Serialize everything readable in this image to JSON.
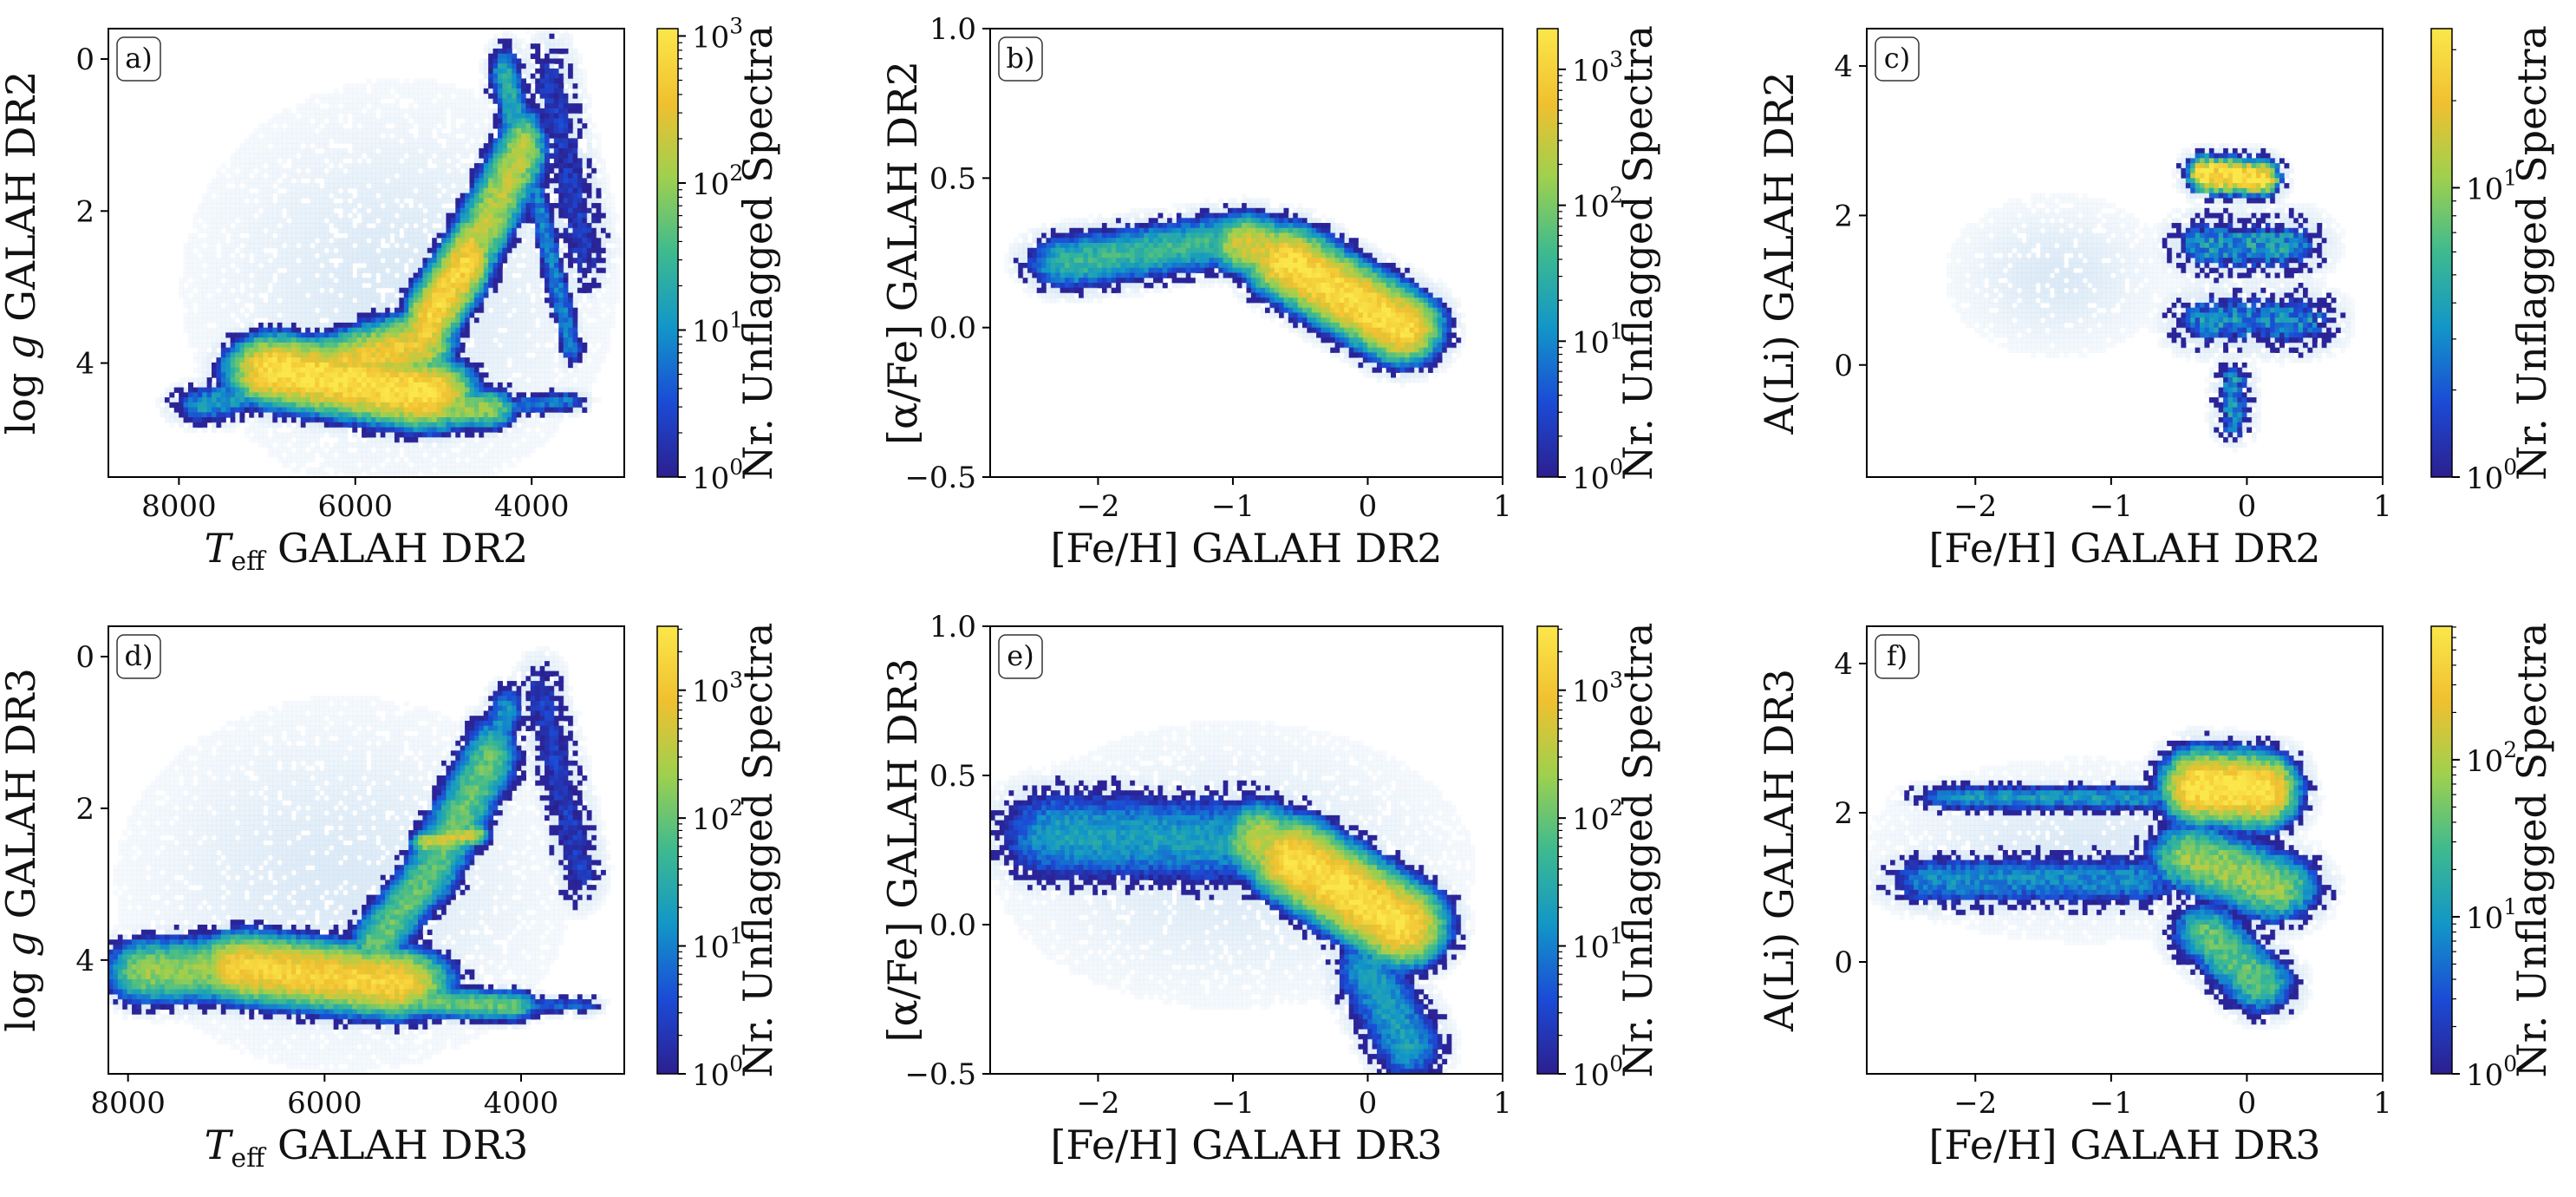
{
  "colormap": [
    "#2c1f8f",
    "#1b4bd6",
    "#1296c8",
    "#3dba8f",
    "#9ed04e",
    "#f0c030",
    "#fbe74a"
  ],
  "lowdensity_color": "#cfe2f3",
  "chart_data": [
    {
      "type": "heatmap",
      "panel": "a)",
      "xlabel": "T_eff GALAH DR2",
      "xlabel_main": "T",
      "xlabel_sub": "eff",
      "xlabel_rest": " GALAH DR2",
      "ylabel": "log g GALAH DR2",
      "ylabel_pre": "log ",
      "ylabel_var": "g",
      "ylabel_rest": " GALAH DR2",
      "xlim": [
        8800,
        2950
      ],
      "ylim": [
        5.5,
        -0.4
      ],
      "xticks": [
        8000,
        6000,
        4000
      ],
      "xticklabels": [
        "8000",
        "6000",
        "4000"
      ],
      "yticks": [
        0,
        2,
        4
      ],
      "yticklabels": [
        "0",
        "2",
        "4"
      ],
      "colorbar": {
        "label": "Nr. Unflagged Spectra",
        "scale": "log",
        "max_exp": 3.05,
        "ticks": [
          {
            "base": "10",
            "exp": "0",
            "e": 0
          },
          {
            "base": "10",
            "exp": "1",
            "e": 1
          },
          {
            "base": "10",
            "exp": "2",
            "e": 2
          },
          {
            "base": "10",
            "exp": "3",
            "e": 3
          }
        ]
      },
      "density": [
        {
          "kind": "seg",
          "x0": 6900,
          "y0": 4.1,
          "x1": 5200,
          "y1": 4.4,
          "sx": 380,
          "sy": 0.32,
          "dens": 3.0
        },
        {
          "kind": "seg",
          "x0": 6200,
          "y0": 4.05,
          "x1": 5300,
          "y1": 3.75,
          "sx": 300,
          "sy": 0.3,
          "dens": 2.6
        },
        {
          "kind": "seg",
          "x0": 5200,
          "y0": 3.5,
          "x1": 4700,
          "y1": 2.6,
          "sx": 170,
          "sy": 0.38,
          "dens": 2.8
        },
        {
          "kind": "seg",
          "x0": 4700,
          "y0": 2.6,
          "x1": 4100,
          "y1": 1.2,
          "sx": 200,
          "sy": 0.4,
          "dens": 2.2
        },
        {
          "kind": "seg",
          "x0": 4100,
          "y0": 1.2,
          "x1": 4300,
          "y1": 0.2,
          "sx": 150,
          "sy": 0.3,
          "dens": 1.3
        },
        {
          "kind": "seg",
          "x0": 5400,
          "y0": 4.6,
          "x1": 4500,
          "y1": 4.6,
          "sx": 250,
          "sy": 0.2,
          "dens": 2.0
        },
        {
          "kind": "seg",
          "x0": 7700,
          "y0": 4.55,
          "x1": 6900,
          "y1": 4.3,
          "sx": 300,
          "sy": 0.2,
          "dens": 1.1
        },
        {
          "kind": "seg",
          "x0": 4500,
          "y0": 4.6,
          "x1": 3600,
          "y1": 4.5,
          "sx": 200,
          "sy": 0.12,
          "dens": 0.8
        },
        {
          "kind": "seg",
          "x0": 4000,
          "y0": 1.5,
          "x1": 3550,
          "y1": 3.8,
          "sx": 110,
          "sy": 0.2,
          "dens": 0.9
        },
        {
          "kind": "seg",
          "x0": 3800,
          "y0": 0.3,
          "x1": 3400,
          "y1": 2.5,
          "sx": 250,
          "sy": 0.5,
          "dens": 0.3
        }
      ],
      "halo": [
        {
          "x": 5500,
          "y": 3.0,
          "sx": 1800,
          "sy": 2.0
        }
      ]
    },
    {
      "type": "heatmap",
      "panel": "b)",
      "xlabel": "[Fe/H] GALAH DR2",
      "ylabel": "[α/Fe] GALAH DR2",
      "xlim": [
        -2.8,
        1.0
      ],
      "ylim": [
        -0.5,
        1.0
      ],
      "xticks": [
        -2,
        -1,
        0,
        1
      ],
      "xticklabels": [
        "−2",
        "−1",
        "0",
        "1"
      ],
      "yticks": [
        -0.5,
        0.0,
        0.5,
        1.0
      ],
      "yticklabels": [
        "−0.5",
        "0.0",
        "0.5",
        "1.0"
      ],
      "colorbar": {
        "label": "Nr. Unflagged Spectra",
        "scale": "log",
        "max_exp": 3.3,
        "ticks": [
          {
            "base": "10",
            "exp": "0",
            "e": 0
          },
          {
            "base": "10",
            "exp": "1",
            "e": 1
          },
          {
            "base": "10",
            "exp": "2",
            "e": 2
          },
          {
            "base": "10",
            "exp": "3",
            "e": 3
          }
        ]
      },
      "density": [
        {
          "kind": "seg",
          "x0": -2.2,
          "y0": 0.22,
          "x1": -0.9,
          "y1": 0.3,
          "sx": 0.25,
          "sy": 0.07,
          "dens": 1.6
        },
        {
          "kind": "seg",
          "x0": -0.9,
          "y0": 0.28,
          "x1": -0.45,
          "y1": 0.22,
          "sx": 0.2,
          "sy": 0.07,
          "dens": 2.6
        },
        {
          "kind": "seg",
          "x0": -0.6,
          "y0": 0.22,
          "x1": 0.25,
          "y1": 0.0,
          "sx": 0.2,
          "sy": 0.08,
          "dens": 3.2
        }
      ],
      "halo": []
    },
    {
      "type": "heatmap",
      "panel": "c)",
      "xlabel": "[Fe/H] GALAH DR2",
      "ylabel": "A(Li) GALAH DR2",
      "xlim": [
        -2.8,
        1.0
      ],
      "ylim": [
        -1.5,
        4.5
      ],
      "xticks": [
        -2,
        -1,
        0,
        1
      ],
      "xticklabels": [
        "−2",
        "−1",
        "0",
        "1"
      ],
      "yticks": [
        0,
        2,
        4
      ],
      "yticklabels": [
        "0",
        "2",
        "4"
      ],
      "colorbar": {
        "label": "Nr. Unflagged Spectra",
        "scale": "log",
        "max_exp": 1.55,
        "ticks": [
          {
            "base": "10",
            "exp": "0",
            "e": 0
          },
          {
            "base": "10",
            "exp": "1",
            "e": 1
          }
        ]
      },
      "density": [
        {
          "kind": "seg",
          "x0": -0.3,
          "y0": 2.55,
          "x1": 0.1,
          "y1": 2.5,
          "sx": 0.13,
          "sy": 0.22,
          "dens": 1.55
        },
        {
          "kind": "seg",
          "x0": -0.3,
          "y0": 1.6,
          "x1": 0.3,
          "y1": 1.6,
          "sx": 0.25,
          "sy": 0.35,
          "dens": 0.55
        },
        {
          "kind": "seg",
          "x0": -0.3,
          "y0": 0.6,
          "x1": 0.4,
          "y1": 0.6,
          "sx": 0.25,
          "sy": 0.35,
          "dens": 0.5
        },
        {
          "kind": "seg",
          "x0": -0.1,
          "y0": -0.2,
          "x1": -0.1,
          "y1": -0.8,
          "sx": 0.12,
          "sy": 0.2,
          "dens": 0.5
        }
      ],
      "halo": [
        {
          "x": -1.4,
          "y": 1.2,
          "sx": 0.6,
          "sy": 0.8
        }
      ]
    },
    {
      "type": "heatmap",
      "panel": "d)",
      "xlabel": "T_eff GALAH DR3",
      "xlabel_main": "T",
      "xlabel_sub": "eff",
      "xlabel_rest": " GALAH DR3",
      "ylabel": "log g GALAH DR3",
      "ylabel_pre": "log ",
      "ylabel_var": "g",
      "ylabel_rest": " GALAH DR3",
      "xlim": [
        8200,
        2950
      ],
      "ylim": [
        5.5,
        -0.4
      ],
      "xticks": [
        8000,
        6000,
        4000
      ],
      "xticklabels": [
        "8000",
        "6000",
        "4000"
      ],
      "yticks": [
        0,
        2,
        4
      ],
      "yticklabels": [
        "0",
        "2",
        "4"
      ],
      "colorbar": {
        "label": "Nr. Unflagged Spectra",
        "scale": "log",
        "max_exp": 3.5,
        "ticks": [
          {
            "base": "10",
            "exp": "0",
            "e": 0
          },
          {
            "base": "10",
            "exp": "1",
            "e": 1
          },
          {
            "base": "10",
            "exp": "2",
            "e": 2
          },
          {
            "base": "10",
            "exp": "3",
            "e": 3
          }
        ]
      },
      "density": [
        {
          "kind": "seg",
          "x0": 7800,
          "y0": 4.15,
          "x1": 6800,
          "y1": 4.1,
          "sx": 300,
          "sy": 0.3,
          "dens": 2.3
        },
        {
          "kind": "seg",
          "x0": 6800,
          "y0": 4.1,
          "x1": 5300,
          "y1": 4.3,
          "sx": 380,
          "sy": 0.3,
          "dens": 3.2
        },
        {
          "kind": "seg",
          "x0": 5200,
          "y0": 4.55,
          "x1": 4100,
          "y1": 4.6,
          "sx": 200,
          "sy": 0.15,
          "dens": 2.0
        },
        {
          "kind": "seg",
          "x0": 5500,
          "y0": 3.8,
          "x1": 4900,
          "y1": 2.8,
          "sx": 180,
          "sy": 0.3,
          "dens": 2.0
        },
        {
          "kind": "seg",
          "x0": 4900,
          "y0": 2.8,
          "x1": 4300,
          "y1": 1.3,
          "sx": 200,
          "sy": 0.35,
          "dens": 2.0
        },
        {
          "kind": "seg",
          "x0": 4300,
          "y0": 1.3,
          "x1": 4150,
          "y1": 0.7,
          "sx": 150,
          "sy": 0.25,
          "dens": 1.2
        },
        {
          "kind": "seg",
          "x0": 4950,
          "y0": 2.45,
          "x1": 4500,
          "y1": 2.35,
          "sx": 120,
          "sy": 0.1,
          "dens": 2.7
        },
        {
          "kind": "seg",
          "x0": 4100,
          "y0": 4.6,
          "x1": 3400,
          "y1": 4.6,
          "sx": 180,
          "sy": 0.1,
          "dens": 0.7
        },
        {
          "kind": "seg",
          "x0": 3800,
          "y0": 0.5,
          "x1": 3400,
          "y1": 2.8,
          "sx": 200,
          "sy": 0.4,
          "dens": 0.4
        }
      ],
      "halo": [
        {
          "x": 5800,
          "y": 3.0,
          "sx": 1700,
          "sy": 1.8
        }
      ]
    },
    {
      "type": "heatmap",
      "panel": "e)",
      "xlabel": "[Fe/H] GALAH DR3",
      "ylabel": "[α/Fe] GALAH DR3",
      "xlim": [
        -2.8,
        1.0
      ],
      "ylim": [
        -0.5,
        1.0
      ],
      "xticks": [
        -2,
        -1,
        0,
        1
      ],
      "xticklabels": [
        "−2",
        "−1",
        "0",
        "1"
      ],
      "yticks": [
        -0.5,
        0.0,
        0.5,
        1.0
      ],
      "yticklabels": [
        "−0.5",
        "0.0",
        "0.5",
        "1.0"
      ],
      "colorbar": {
        "label": "Nr. Unflagged Spectra",
        "scale": "log",
        "max_exp": 3.5,
        "ticks": [
          {
            "base": "10",
            "exp": "0",
            "e": 0
          },
          {
            "base": "10",
            "exp": "1",
            "e": 1
          },
          {
            "base": "10",
            "exp": "2",
            "e": 2
          },
          {
            "base": "10",
            "exp": "3",
            "e": 3
          }
        ]
      },
      "density": [
        {
          "kind": "seg",
          "x0": -2.3,
          "y0": 0.3,
          "x1": -0.8,
          "y1": 0.28,
          "sx": 0.35,
          "sy": 0.12,
          "dens": 1.3
        },
        {
          "kind": "seg",
          "x0": -0.8,
          "y0": 0.28,
          "x1": -0.45,
          "y1": 0.22,
          "sx": 0.2,
          "sy": 0.09,
          "dens": 2.6
        },
        {
          "kind": "seg",
          "x0": -0.55,
          "y0": 0.22,
          "x1": 0.25,
          "y1": 0.0,
          "sx": 0.22,
          "sy": 0.09,
          "dens": 3.4
        },
        {
          "kind": "seg",
          "x0": 0.0,
          "y0": -0.15,
          "x1": 0.3,
          "y1": -0.4,
          "sx": 0.2,
          "sy": 0.1,
          "dens": 1.3
        }
      ],
      "halo": [
        {
          "x": -1.0,
          "y": 0.2,
          "sx": 1.3,
          "sy": 0.35
        }
      ]
    },
    {
      "type": "heatmap",
      "panel": "f)",
      "xlabel": "[Fe/H] GALAH DR3",
      "ylabel": "A(Li) GALAH DR3",
      "xlim": [
        -2.8,
        1.0
      ],
      "ylim": [
        -1.5,
        4.5
      ],
      "xticks": [
        -2,
        -1,
        0,
        1
      ],
      "xticklabels": [
        "−2",
        "−1",
        "0",
        "1"
      ],
      "yticks": [
        0,
        2,
        4
      ],
      "yticklabels": [
        "0",
        "2",
        "4"
      ],
      "colorbar": {
        "label": "Nr. Unflagged Spectra",
        "scale": "log",
        "max_exp": 2.85,
        "ticks": [
          {
            "base": "10",
            "exp": "0",
            "e": 0
          },
          {
            "base": "10",
            "exp": "1",
            "e": 1
          },
          {
            "base": "10",
            "exp": "2",
            "e": 2
          }
        ]
      },
      "density": [
        {
          "kind": "seg",
          "x0": -0.35,
          "y0": 2.35,
          "x1": 0.1,
          "y1": 2.3,
          "sx": 0.2,
          "sy": 0.35,
          "dens": 2.85
        },
        {
          "kind": "seg",
          "x0": -0.4,
          "y0": 1.4,
          "x1": 0.2,
          "y1": 1.0,
          "sx": 0.25,
          "sy": 0.35,
          "dens": 1.9
        },
        {
          "kind": "seg",
          "x0": -0.3,
          "y0": 0.4,
          "x1": 0.1,
          "y1": -0.3,
          "sx": 0.2,
          "sy": 0.3,
          "dens": 1.6
        },
        {
          "kind": "seg",
          "x0": -2.1,
          "y0": 2.2,
          "x1": -0.8,
          "y1": 2.2,
          "sx": 0.3,
          "sy": 0.15,
          "dens": 1.0
        },
        {
          "kind": "seg",
          "x0": -2.3,
          "y0": 1.1,
          "x1": -0.8,
          "y1": 1.1,
          "sx": 0.3,
          "sy": 0.3,
          "dens": 0.9
        }
      ],
      "halo": [
        {
          "x": -1.2,
          "y": 1.5,
          "sx": 1.2,
          "sy": 0.9
        }
      ]
    }
  ]
}
